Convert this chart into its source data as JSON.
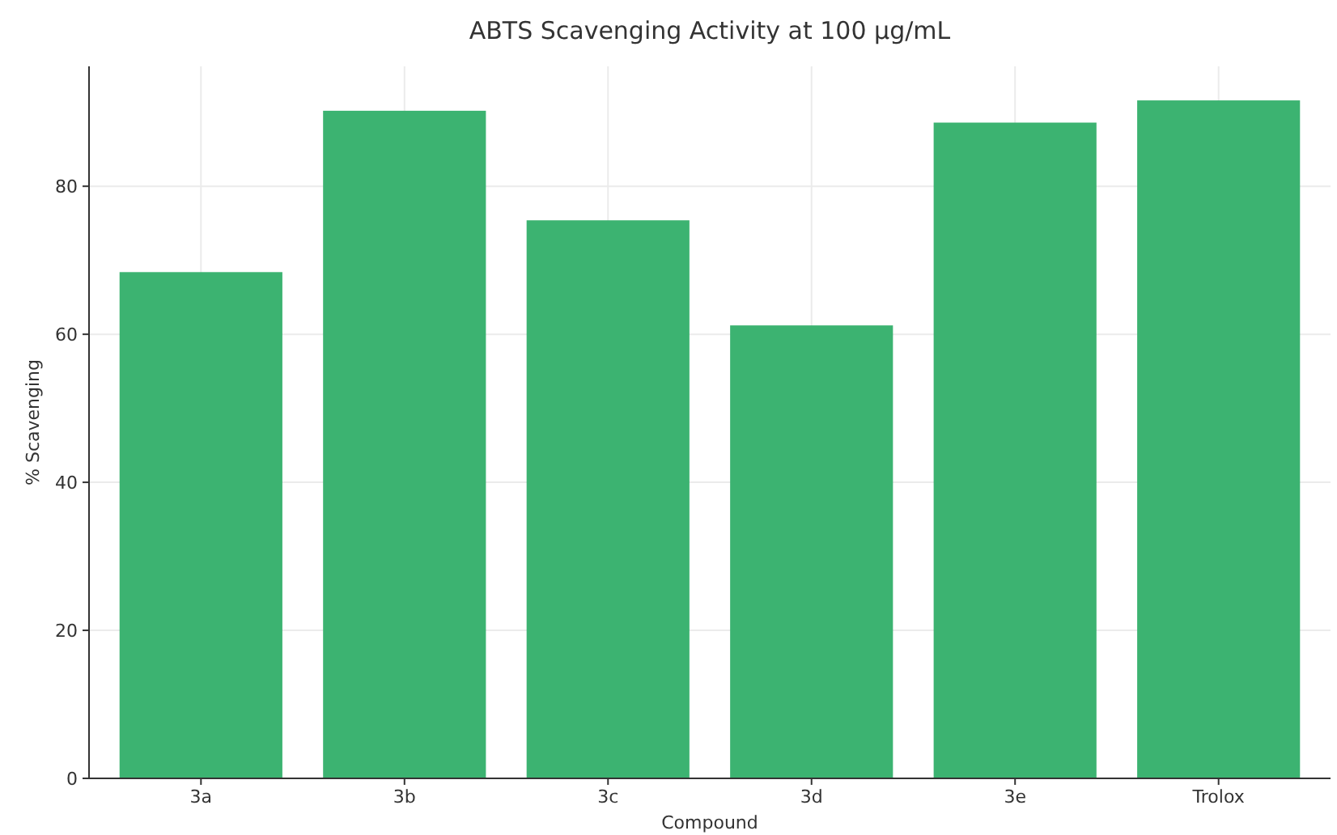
{
  "chart_data": {
    "type": "bar",
    "title": "ABTS Scavenging Activity at 100 µg/mL",
    "xlabel": "Compound",
    "ylabel": "% Scavenging",
    "categories": [
      "3a",
      "3b",
      "3c",
      "3d",
      "3e",
      "Trolox"
    ],
    "values": [
      68.4,
      90.2,
      75.4,
      61.2,
      88.6,
      91.6
    ],
    "color": "#3cb371",
    "ylim": [
      0,
      96.2
    ],
    "yticks": [
      0,
      20,
      40,
      60,
      80
    ],
    "grid": true
  }
}
